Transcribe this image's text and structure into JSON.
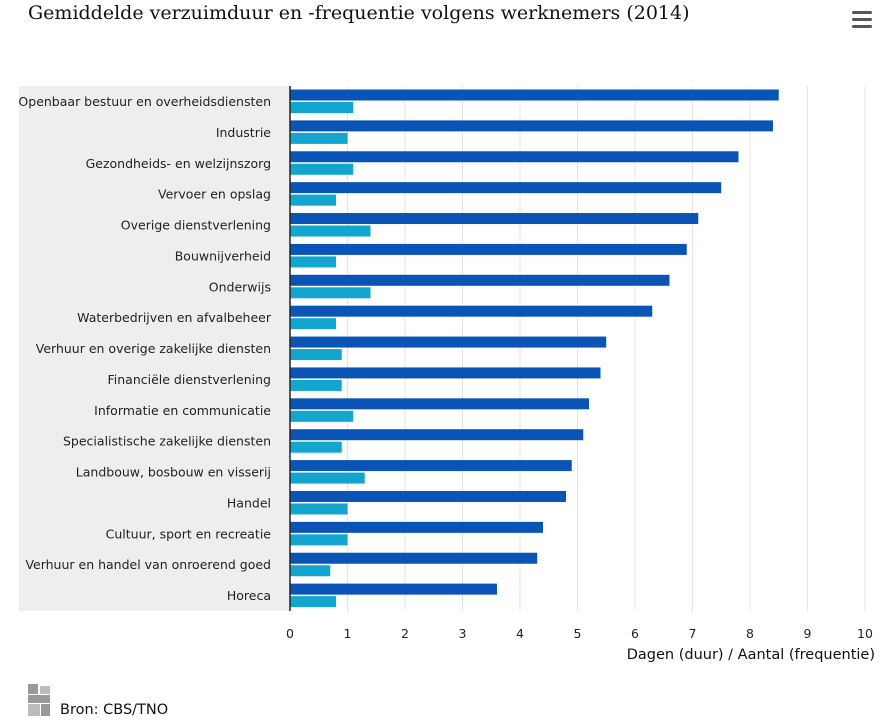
{
  "chart_data": {
    "type": "bar",
    "orientation": "horizontal",
    "title": "Gemiddelde verzuimduur en -frequentie volgens werknemers (2014)",
    "xlabel": "Dagen (duur) / Aantal (frequentie)",
    "xlim": [
      0,
      10
    ],
    "xticks": [
      "0",
      "1",
      "2",
      "3",
      "4",
      "5",
      "6",
      "7",
      "8",
      "9",
      "10"
    ],
    "grid": true,
    "legend": "none",
    "categories": [
      "Openbaar bestuur en overheidsdiensten",
      "Industrie",
      "Gezondheids- en welzijnszorg",
      "Vervoer en opslag",
      "Overige dienstverlening",
      "Bouwnijverheid",
      "Onderwijs",
      "Waterbedrijven en afvalbeheer",
      "Verhuur en overige zakelijke diensten",
      "Financiële dienstverlening",
      "Informatie en communicatie",
      "Specialistische zakelijke diensten",
      "Landbouw, bosbouw en visserij",
      "Handel",
      "Cultuur, sport en recreatie",
      "Verhuur en handel van onroerend goed",
      "Horeca"
    ],
    "series": [
      {
        "color": "#0a54b5",
        "values": [
          8.5,
          8.4,
          7.8,
          7.5,
          7.1,
          6.9,
          6.6,
          6.3,
          5.5,
          5.4,
          5.2,
          5.1,
          4.9,
          4.8,
          4.4,
          4.3,
          3.6
        ]
      },
      {
        "color": "#12a6cf",
        "values": [
          1.1,
          1.0,
          1.1,
          0.8,
          1.4,
          0.8,
          1.4,
          0.8,
          0.9,
          0.9,
          1.1,
          0.9,
          1.3,
          1.0,
          1.0,
          0.7,
          0.8
        ]
      }
    ]
  },
  "menu": {
    "icon": "hamburger-menu-icon"
  },
  "source": {
    "text": "Bron: CBS/TNO",
    "logo": "cbs-logo-icon"
  }
}
